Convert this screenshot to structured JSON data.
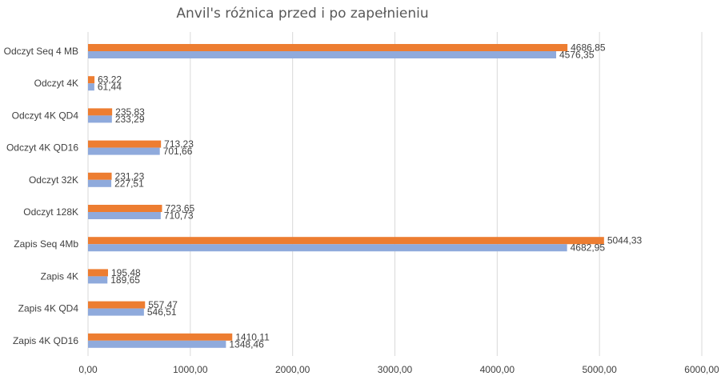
{
  "chart_data": {
    "type": "bar",
    "orientation": "horizontal",
    "title": "Anvil's różnica przed i po zapełnieniu",
    "categories": [
      "Odczyt Seq 4 MB",
      "Odczyt 4K",
      "Odczyt 4K QD4",
      "Odczyt 4K QD16",
      "Odczyt 32K",
      "Odczyt 128K",
      "Zapis Seq 4Mb",
      "Zapis 4K",
      "Zapis 4K QD4",
      "Zapis 4K QD16"
    ],
    "series": [
      {
        "color": "#ed7d31",
        "values": [
          4686.85,
          63.22,
          235.83,
          713.23,
          231.23,
          723.65,
          5044.33,
          195.48,
          557.47,
          1410.11
        ],
        "labels": [
          "4686,85",
          "63,22",
          "235,83",
          "713,23",
          "231,23",
          "723,65",
          "5044,33",
          "195,48",
          "557,47",
          "1410,11"
        ]
      },
      {
        "color": "#8faadc",
        "values": [
          4576.35,
          61.44,
          233.29,
          701.66,
          227.51,
          710.73,
          4682.95,
          189.65,
          546.51,
          1348.46
        ],
        "labels": [
          "4576,35",
          "61,44",
          "233,29",
          "701,66",
          "227,51",
          "710,73",
          "4682,95",
          "189,65",
          "546,51",
          "1348,46"
        ]
      }
    ],
    "xlim": [
      0,
      6000
    ],
    "x_ticks": [
      0,
      1000,
      2000,
      3000,
      4000,
      5000,
      6000
    ],
    "x_tick_labels": [
      "0,00",
      "1000,00",
      "2000,00",
      "3000,00",
      "4000,00",
      "5000,00",
      "6000,00"
    ],
    "grid": "vertical",
    "legend": "none",
    "gridline_color": "#d9d9d9"
  }
}
